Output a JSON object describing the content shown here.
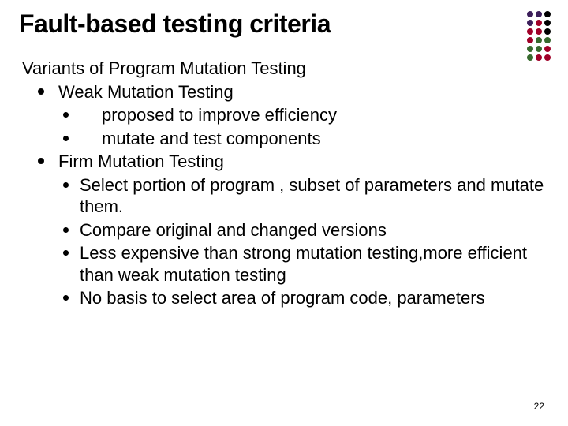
{
  "title": "Fault-based testing criteria",
  "heading": "Variants of Program Mutation Testing",
  "items": [
    {
      "label": "Weak Mutation Testing",
      "sub": [
        {
          "text": "proposed to improve efficiency",
          "indent": true
        },
        {
          "text": "mutate and test components",
          "indent": true
        }
      ]
    },
    {
      "label": "Firm Mutation Testing",
      "sub": [
        {
          "text": "Select portion of program , subset of parameters and mutate them.",
          "indent": false
        },
        {
          "text": "Compare original and changed versions",
          "indent": false
        },
        {
          "text": "Less expensive than strong mutation testing,more efficient than weak mutation testing",
          "indent": false
        },
        {
          "text": "No basis to select area of program code, parameters",
          "indent": false
        }
      ]
    }
  ],
  "slide_number": "22",
  "decor_dots": [
    "#3c1e5a",
    "#3c1e5a",
    "#000000",
    "#3c1e5a",
    "#a00028",
    "#000000",
    "#a00028",
    "#a00028",
    "#000000",
    "#a00028",
    "#386a2e",
    "#386a2e",
    "#386a2e",
    "#386a2e",
    "#a00028",
    "#386a2e",
    "#a00028",
    "#a00028"
  ],
  "colors": {
    "background": "#ffffff",
    "text": "#000000",
    "bullet": "#000000"
  }
}
